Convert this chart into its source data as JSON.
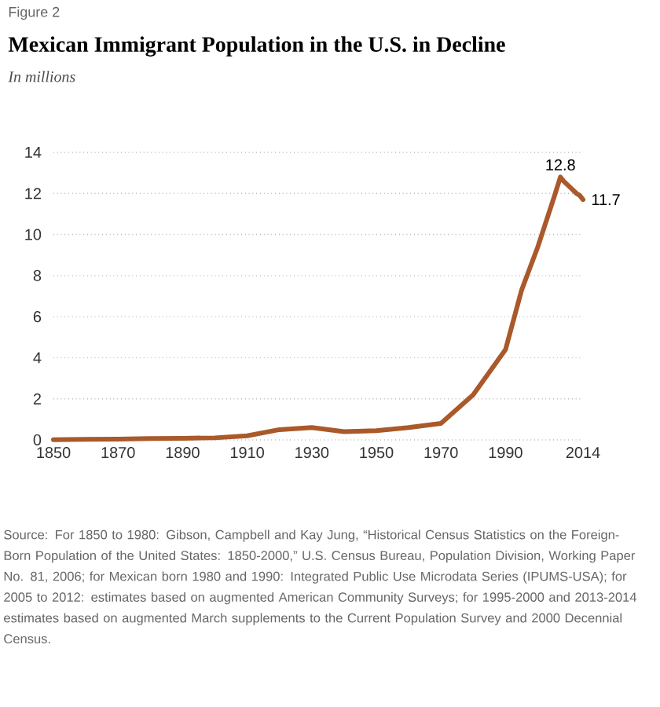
{
  "chart_data": {
    "type": "line",
    "title": "Mexican Immigrant Population in the U.S. in Decline",
    "subtitle": "In millions",
    "x": [
      1850,
      1860,
      1870,
      1880,
      1890,
      1900,
      1910,
      1920,
      1930,
      1940,
      1950,
      1960,
      1970,
      1980,
      1990,
      1995,
      2000,
      2005,
      2007,
      2008,
      2010,
      2012,
      2013,
      2014
    ],
    "series": [
      {
        "color": "#a9592a",
        "values": [
          0.01,
          0.03,
          0.04,
          0.07,
          0.08,
          0.1,
          0.2,
          0.5,
          0.6,
          0.4,
          0.45,
          0.6,
          0.8,
          2.2,
          4.4,
          7.3,
          9.4,
          11.8,
          12.8,
          12.6,
          12.3,
          12.0,
          11.9,
          11.7
        ]
      }
    ],
    "xlim": [
      1850,
      2014
    ],
    "xticks": [
      1850,
      1870,
      1890,
      1910,
      1930,
      1950,
      1970,
      1990,
      2014
    ],
    "ylim": [
      0,
      14
    ],
    "yticks": [
      0,
      2,
      4,
      6,
      8,
      10,
      12,
      14
    ],
    "grid": "y",
    "line_style": "solid",
    "marker": "none",
    "annotations": [
      {
        "text": "12.8",
        "x": 2007,
        "y": 12.8
      },
      {
        "text": "11.7",
        "x": 2014,
        "y": 11.7
      },
      "Figure 2",
      "Source: For 1850 to 1980: Gibson, Campbell and Kay Jung, “Historical Census Statistics on the Foreign-Born Population of the United States: 1850-2000,” U.S. Census Bureau, Population Division, Working Paper No. 81, 2006; for Mexican born 1980 and 1990: Integrated Public Use Microdata Series (IPUMS-USA); for 2005 to 2012: estimates based on augmented American Community Surveys; for 1995-2000 and 2013-2014 estimates based on augmented March supplements to the Current Population Survey and 2000 Decennial Census."
    ]
  }
}
